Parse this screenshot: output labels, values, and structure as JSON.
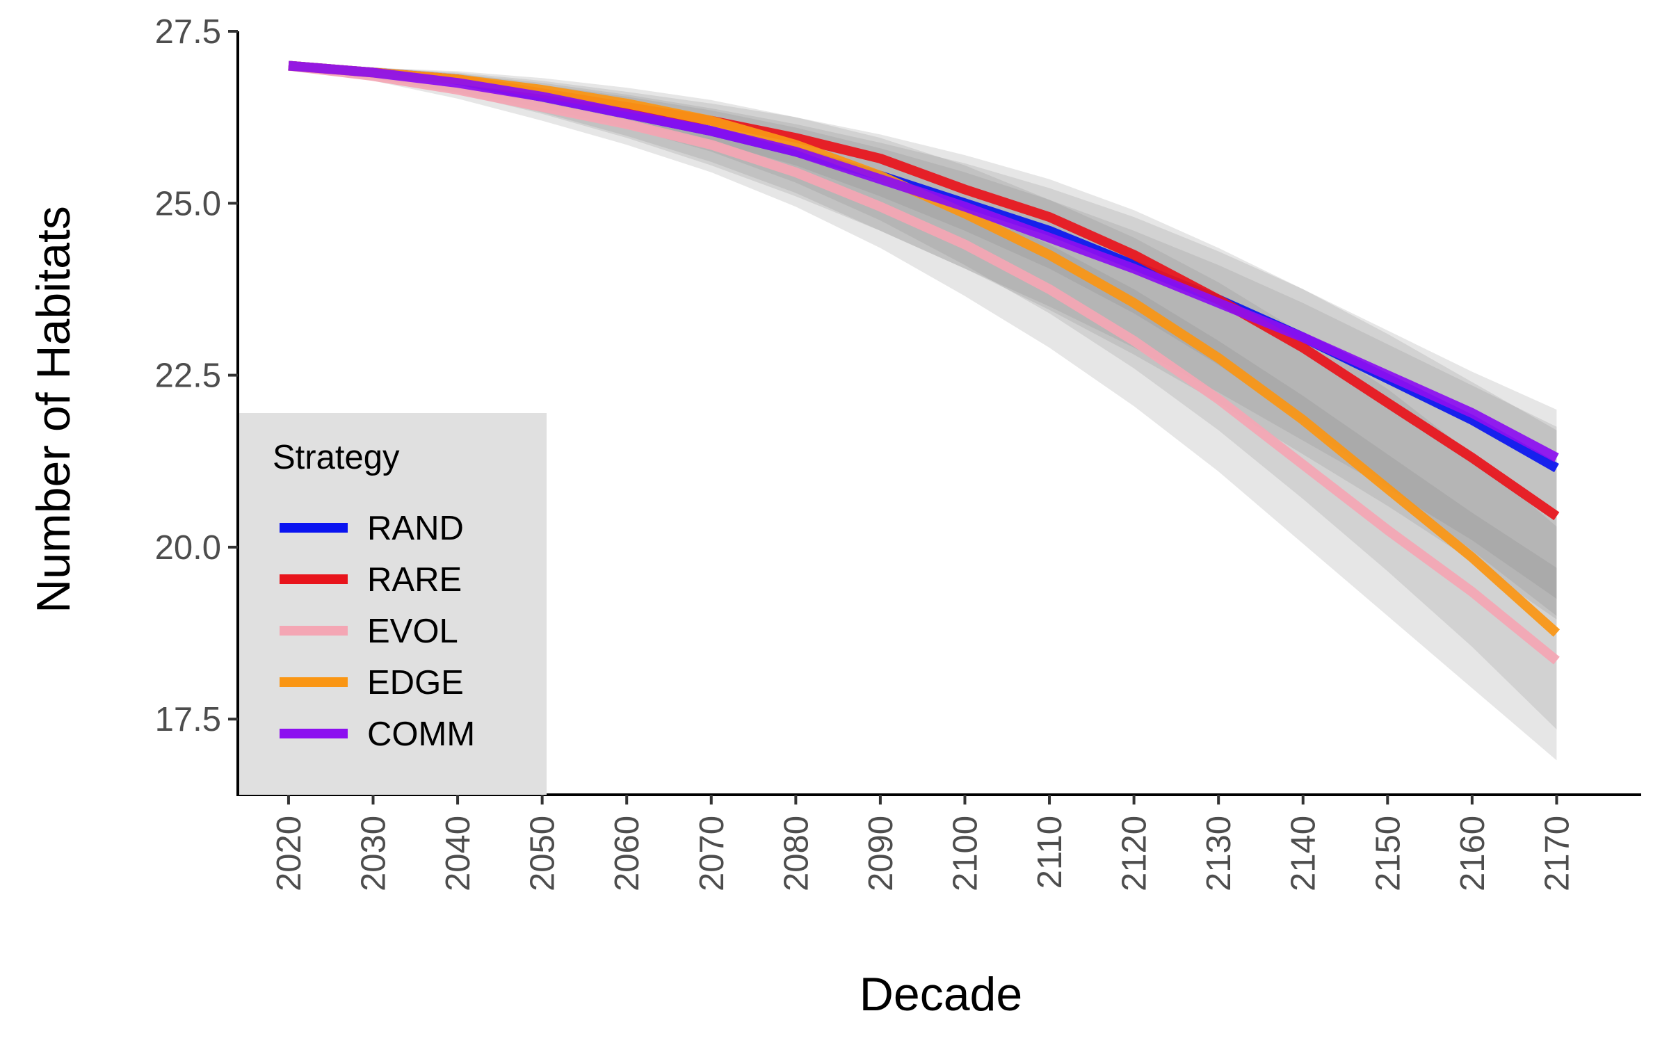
{
  "chart_data": {
    "type": "line",
    "title": "",
    "xlabel": "Decade",
    "ylabel": "Number of Habitats",
    "x": [
      2020,
      2030,
      2040,
      2050,
      2060,
      2070,
      2080,
      2090,
      2100,
      2110,
      2120,
      2130,
      2140,
      2150,
      2160,
      2170
    ],
    "x_tick_labels": [
      "2020",
      "2030",
      "2040",
      "2050",
      "2060",
      "2070",
      "2080",
      "2090",
      "2100",
      "2110",
      "2120",
      "2130",
      "2140",
      "2150",
      "2160",
      "2170"
    ],
    "xlim": [
      2014,
      2180
    ],
    "ylim": [
      16.4,
      27.5
    ],
    "y_ticks": [
      17.5,
      20.0,
      22.5,
      25.0,
      27.5
    ],
    "y_tick_labels": [
      "17.5",
      "20.0",
      "22.5",
      "25.0",
      "27.5"
    ],
    "grid": false,
    "confidence_bands": true,
    "band_color": "#808080",
    "legend": {
      "title": "Strategy",
      "position": "bottom-left",
      "background": "#e0e0e0"
    },
    "series": [
      {
        "name": "RAND",
        "color": "#0a14f0",
        "values": [
          27.0,
          26.9,
          26.75,
          26.55,
          26.3,
          26.05,
          25.75,
          25.4,
          25.0,
          24.6,
          24.1,
          23.6,
          23.05,
          22.45,
          21.85,
          21.15
        ],
        "lower": [
          27.0,
          26.82,
          26.6,
          26.3,
          25.95,
          25.55,
          25.1,
          24.6,
          24.05,
          23.45,
          22.8,
          22.1,
          21.35,
          20.6,
          19.8,
          18.95
        ],
        "upper": [
          27.0,
          26.98,
          26.88,
          26.72,
          26.55,
          26.35,
          26.1,
          25.8,
          25.45,
          25.05,
          24.6,
          24.1,
          23.55,
          22.95,
          22.35,
          21.75
        ]
      },
      {
        "name": "RARE",
        "color": "#e8141c",
        "values": [
          27.0,
          26.9,
          26.8,
          26.6,
          26.4,
          26.2,
          25.95,
          25.65,
          25.2,
          24.8,
          24.25,
          23.6,
          22.9,
          22.1,
          21.3,
          20.45
        ],
        "lower": [
          27.0,
          26.85,
          26.68,
          26.45,
          26.2,
          25.9,
          25.55,
          25.1,
          24.6,
          24.05,
          23.4,
          22.65,
          21.8,
          20.9,
          19.95,
          19.0
        ],
        "upper": [
          27.0,
          26.97,
          26.9,
          26.78,
          26.62,
          26.45,
          26.25,
          26.0,
          25.7,
          25.35,
          24.9,
          24.35,
          23.75,
          23.1,
          22.4,
          21.7
        ]
      },
      {
        "name": "EVOL",
        "color": "#f4a6b4",
        "values": [
          27.0,
          26.85,
          26.65,
          26.4,
          26.15,
          25.85,
          25.45,
          24.95,
          24.4,
          23.75,
          23.0,
          22.15,
          21.2,
          20.25,
          19.35,
          18.35
        ],
        "lower": [
          27.0,
          26.78,
          26.52,
          26.2,
          25.85,
          25.45,
          24.95,
          24.35,
          23.65,
          22.9,
          22.05,
          21.1,
          20.05,
          19.0,
          17.95,
          16.9
        ],
        "upper": [
          27.0,
          26.92,
          26.8,
          26.6,
          26.38,
          26.12,
          25.8,
          25.4,
          24.95,
          24.4,
          23.75,
          23.0,
          22.2,
          21.35,
          20.5,
          19.7
        ]
      },
      {
        "name": "EDGE",
        "color": "#fa9614",
        "values": [
          27.0,
          26.9,
          26.8,
          26.65,
          26.45,
          26.2,
          25.85,
          25.4,
          24.85,
          24.25,
          23.55,
          22.75,
          21.85,
          20.85,
          19.85,
          18.75
        ],
        "lower": [
          27.0,
          26.82,
          26.62,
          26.38,
          26.1,
          25.75,
          25.3,
          24.75,
          24.1,
          23.4,
          22.6,
          21.7,
          20.7,
          19.65,
          18.55,
          17.35
        ],
        "upper": [
          27.0,
          26.97,
          26.92,
          26.82,
          26.68,
          26.5,
          26.25,
          25.95,
          25.55,
          25.05,
          24.5,
          23.85,
          23.1,
          22.3,
          21.35,
          20.3
        ]
      },
      {
        "name": "COMM",
        "color": "#8c0ff0",
        "values": [
          27.0,
          26.9,
          26.75,
          26.55,
          26.3,
          26.05,
          25.75,
          25.35,
          24.95,
          24.5,
          24.05,
          23.55,
          23.05,
          22.5,
          21.95,
          21.3
        ],
        "lower": [
          27.0,
          26.82,
          26.6,
          26.32,
          25.98,
          25.6,
          25.15,
          24.6,
          24.05,
          23.5,
          22.9,
          22.25,
          21.55,
          20.85,
          20.1,
          19.25
        ],
        "upper": [
          27.0,
          26.97,
          26.88,
          26.75,
          26.58,
          26.38,
          26.15,
          25.88,
          25.58,
          25.22,
          24.8,
          24.3,
          23.75,
          23.15,
          22.55,
          22.0
        ]
      }
    ]
  }
}
